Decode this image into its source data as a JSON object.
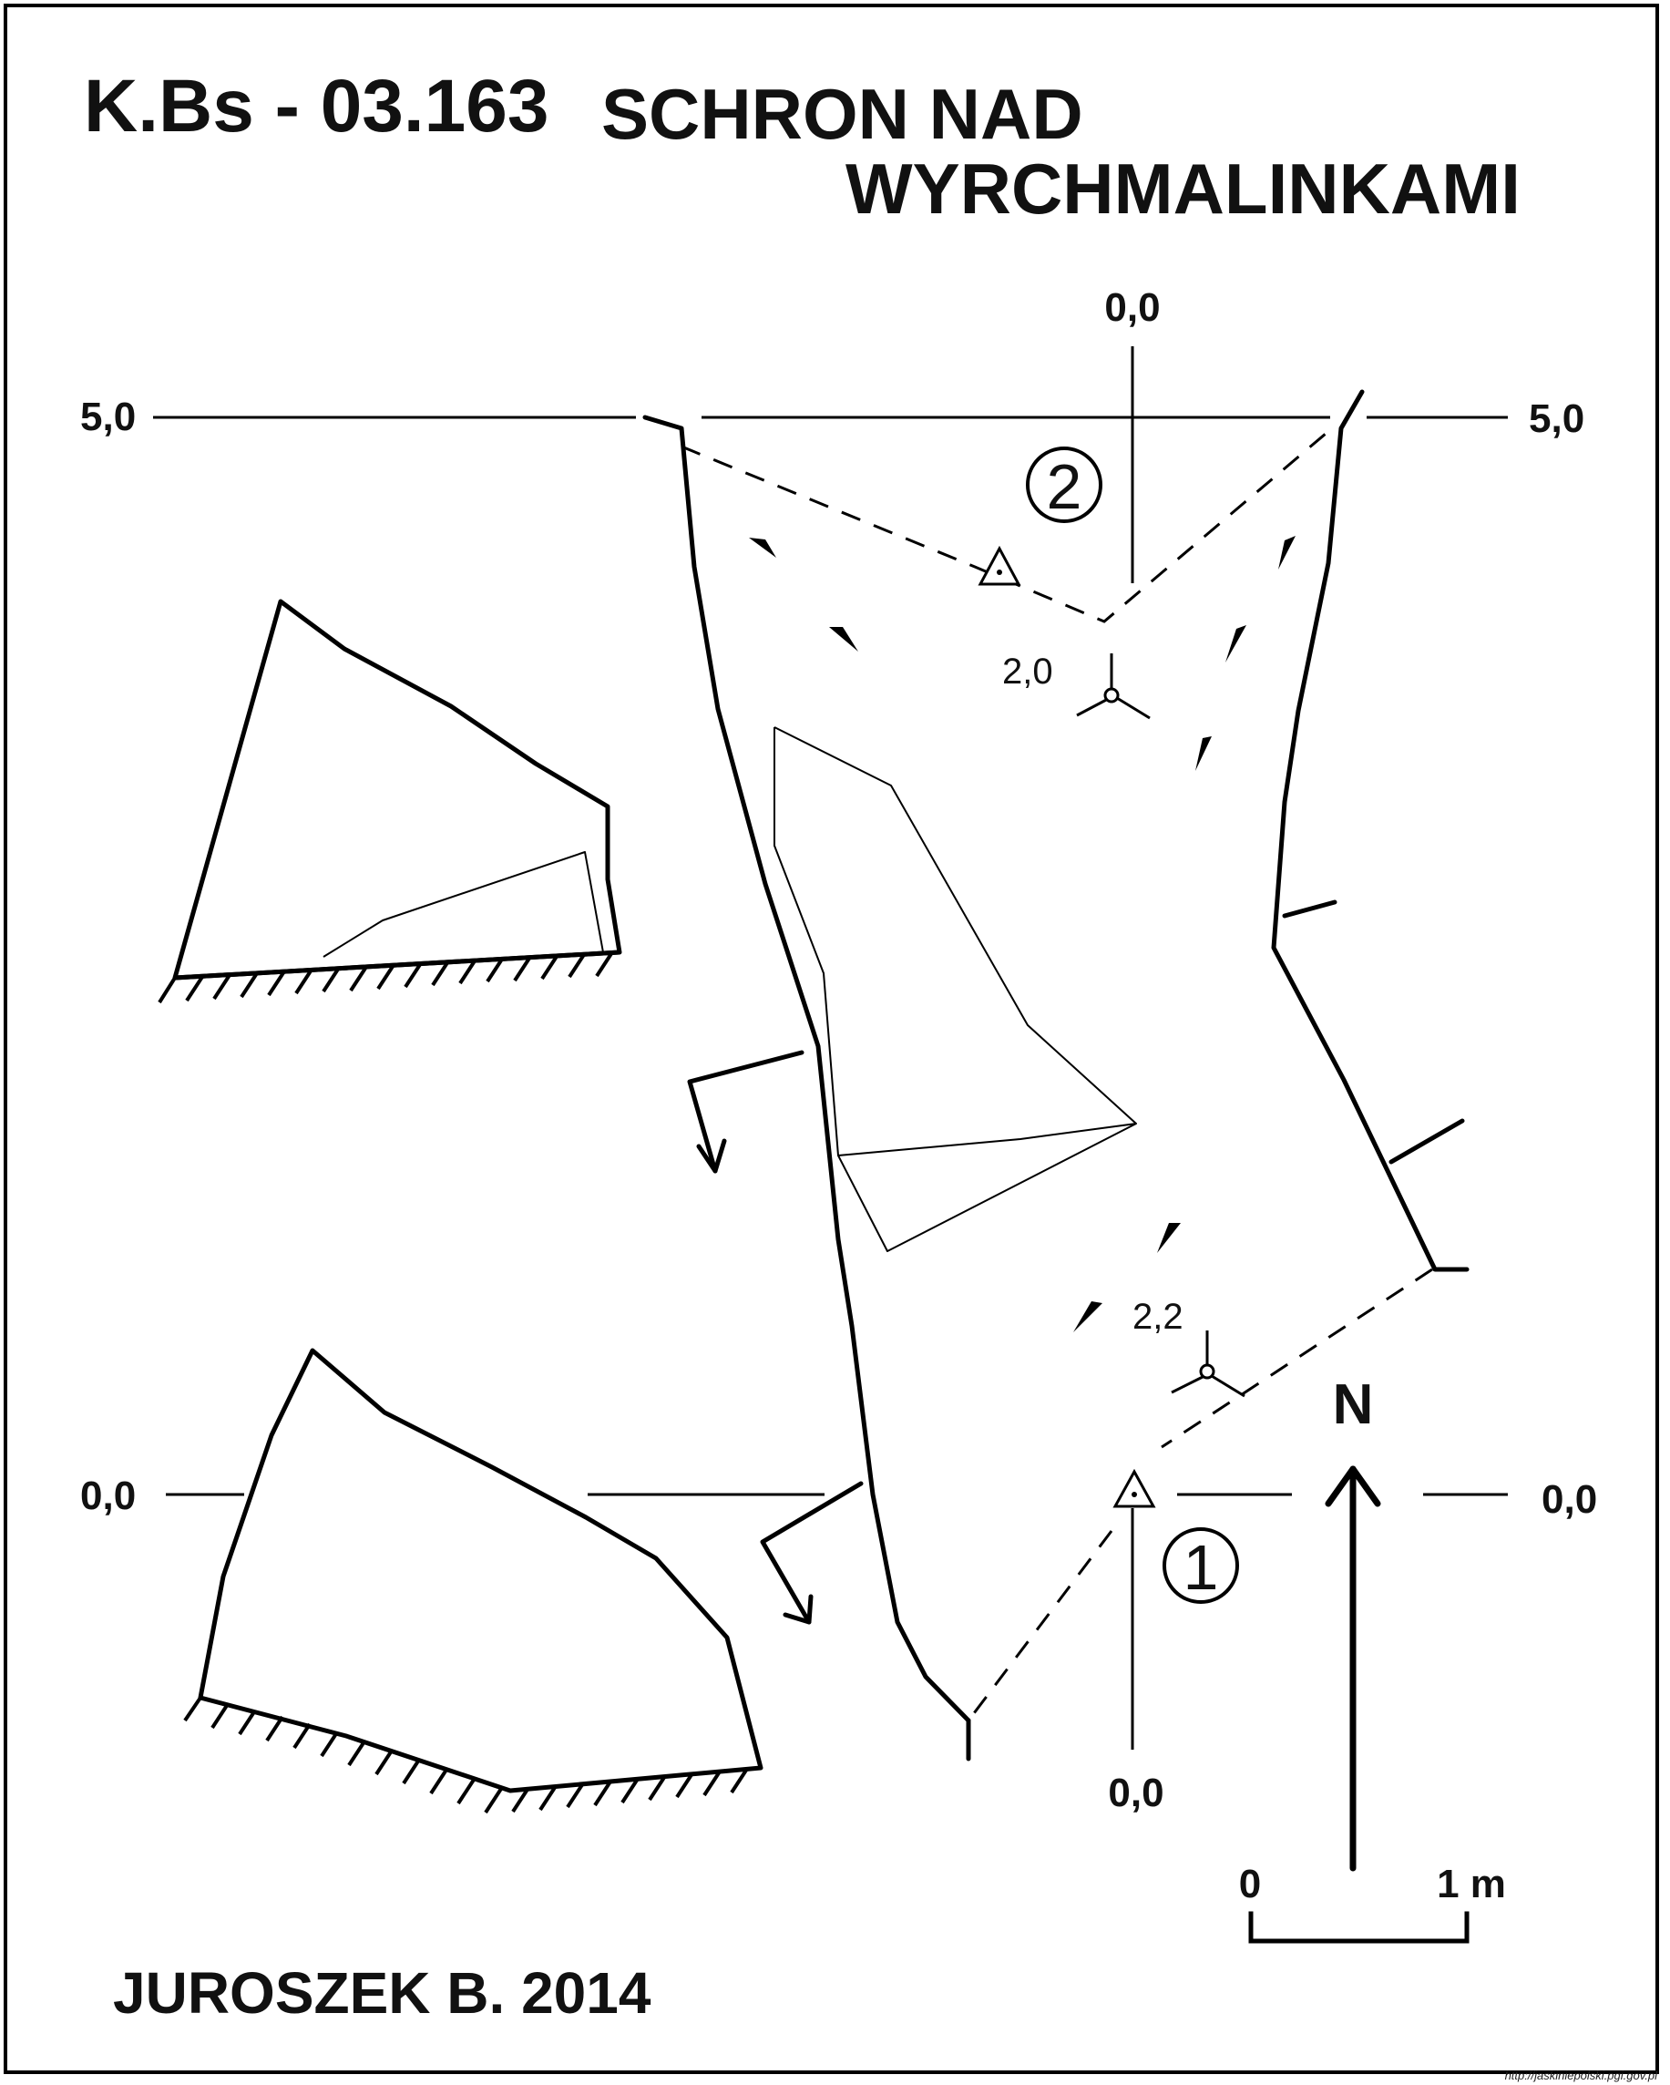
{
  "header": {
    "cave_code": "K.Bs - 03.163",
    "cave_name_line1": "SCHRON NAD",
    "cave_name_line2": "WYRCHMALINKAMI"
  },
  "author": "JUROSZEK B. 2014",
  "source_url": "http://jaskiniepolski.pgi.gov.pl",
  "section_labels": {
    "upper_left": "5,0",
    "upper_right": "5,0",
    "lower_left": "0,0",
    "lower_right": "0,0",
    "vertical_top": "0,0",
    "vertical_bottom": "0,0"
  },
  "stations": {
    "station_1": "1",
    "station_2": "2"
  },
  "heights": {
    "height_upper": "2,0",
    "height_lower": "2,2"
  },
  "north_label": "N",
  "scale": {
    "start": "0",
    "end": "1 m"
  }
}
